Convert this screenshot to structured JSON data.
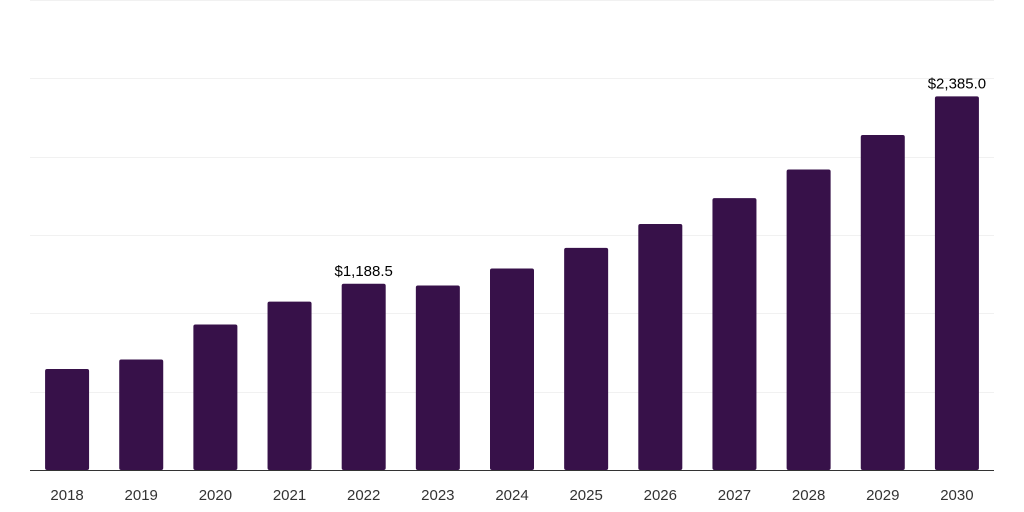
{
  "chart_data": {
    "type": "bar",
    "categories": [
      "2018",
      "2019",
      "2020",
      "2021",
      "2022",
      "2023",
      "2024",
      "2025",
      "2026",
      "2027",
      "2028",
      "2029",
      "2030"
    ],
    "values": [
      645.0,
      705.0,
      929.0,
      1075.0,
      1188.5,
      1178.0,
      1286.0,
      1418.0,
      1570.0,
      1735.0,
      1918.0,
      2138.0,
      2385.0
    ],
    "value_labels": [
      "",
      "",
      "",
      "",
      "$1,188.5",
      "",
      "",
      "",
      "",
      "",
      "",
      "",
      "$2,385.0"
    ],
    "title": "",
    "xlabel": "",
    "ylabel": "",
    "ylim": [
      0,
      3000
    ],
    "y_gridlines": [
      500,
      1000,
      1500,
      2000,
      2500,
      3000
    ],
    "grid": true,
    "legend": "none",
    "colors": {
      "bar": "#371149",
      "grid": "#f1f1f1",
      "axis": "#333333"
    }
  }
}
